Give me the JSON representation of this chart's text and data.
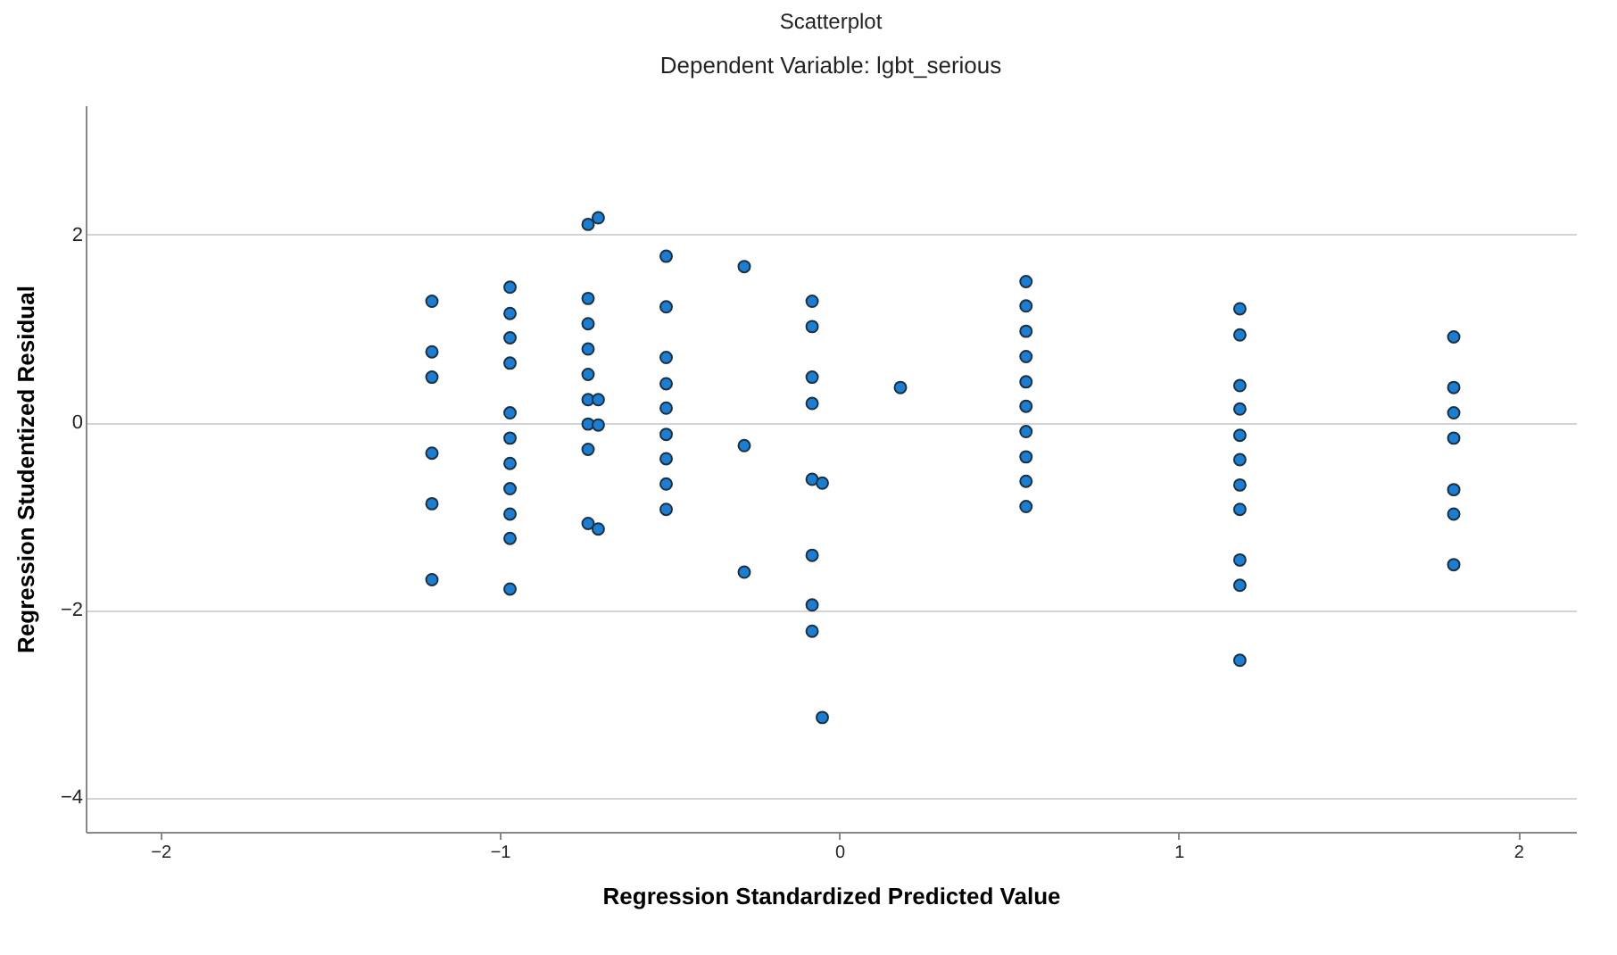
{
  "chart_data": {
    "type": "scatter",
    "title": "Scatterplot",
    "subtitle": "Dependent Variable: lgbt_serious",
    "xlabel": "Regression Standardized Predicted Value",
    "ylabel": "Regression Studentized Residual",
    "series": [
      {
        "color": "#1a7fd4",
        "x": [
          -1.2,
          -1.2,
          -1.2,
          -1.2,
          -1.2,
          -1.2,
          -0.97,
          -0.97,
          -0.97,
          -0.97,
          -0.97,
          -0.97,
          -0.97,
          -0.97,
          -0.97,
          -0.97,
          -0.97,
          -0.74,
          -0.71,
          -0.74,
          -0.74,
          -0.74,
          -0.74,
          -0.74,
          -0.71,
          -0.74,
          -0.71,
          -0.74,
          -0.74,
          -0.71,
          -0.51,
          -0.51,
          -0.51,
          -0.51,
          -0.51,
          -0.51,
          -0.51,
          -0.51,
          -0.51,
          -0.28,
          -0.28,
          -0.28,
          -0.08,
          -0.08,
          -0.08,
          -0.08,
          -0.08,
          -0.08,
          -0.08,
          -0.08,
          -0.05,
          -0.05,
          0.18,
          0.55,
          0.55,
          0.55,
          0.55,
          0.55,
          0.55,
          0.55,
          0.55,
          0.55,
          0.55,
          1.18,
          1.18,
          1.18,
          1.18,
          1.18,
          1.18,
          1.18,
          1.18,
          1.18,
          1.18,
          1.18,
          1.81,
          1.81,
          1.81,
          1.81,
          1.81,
          1.81,
          1.81
        ],
        "values": [
          1.29,
          0.75,
          0.48,
          -0.33,
          -0.87,
          -1.68,
          1.44,
          1.16,
          0.9,
          0.63,
          0.1,
          -0.17,
          -0.44,
          -0.71,
          -0.98,
          -1.24,
          -1.78,
          2.11,
          2.18,
          1.32,
          1.05,
          0.78,
          0.51,
          0.24,
          0.24,
          -0.02,
          -0.03,
          -0.29,
          -1.08,
          -1.14,
          1.77,
          1.23,
          0.69,
          0.41,
          0.15,
          -0.13,
          -0.39,
          -0.66,
          -0.93,
          1.66,
          -0.25,
          -1.6,
          1.29,
          1.02,
          0.48,
          0.2,
          -0.61,
          -1.42,
          -1.95,
          -2.23,
          -0.65,
          -3.15,
          0.37,
          1.5,
          1.24,
          0.97,
          0.7,
          0.43,
          0.17,
          -0.1,
          -0.37,
          -0.63,
          -0.9,
          1.21,
          0.93,
          0.39,
          0.14,
          -0.14,
          -0.4,
          -0.67,
          -0.93,
          -1.47,
          -1.74,
          -2.54,
          0.91,
          0.37,
          0.1,
          -0.17,
          -0.72,
          -0.98,
          -1.52
        ]
      }
    ],
    "xlim": [
      -2.22,
      2.17
    ],
    "xticks": [
      -2,
      -1,
      0,
      1,
      2
    ],
    "ylim": [
      -4.37,
      3.38
    ],
    "yticks": [
      -4,
      -2,
      0,
      2
    ],
    "grid": "y",
    "marker": "circle"
  }
}
